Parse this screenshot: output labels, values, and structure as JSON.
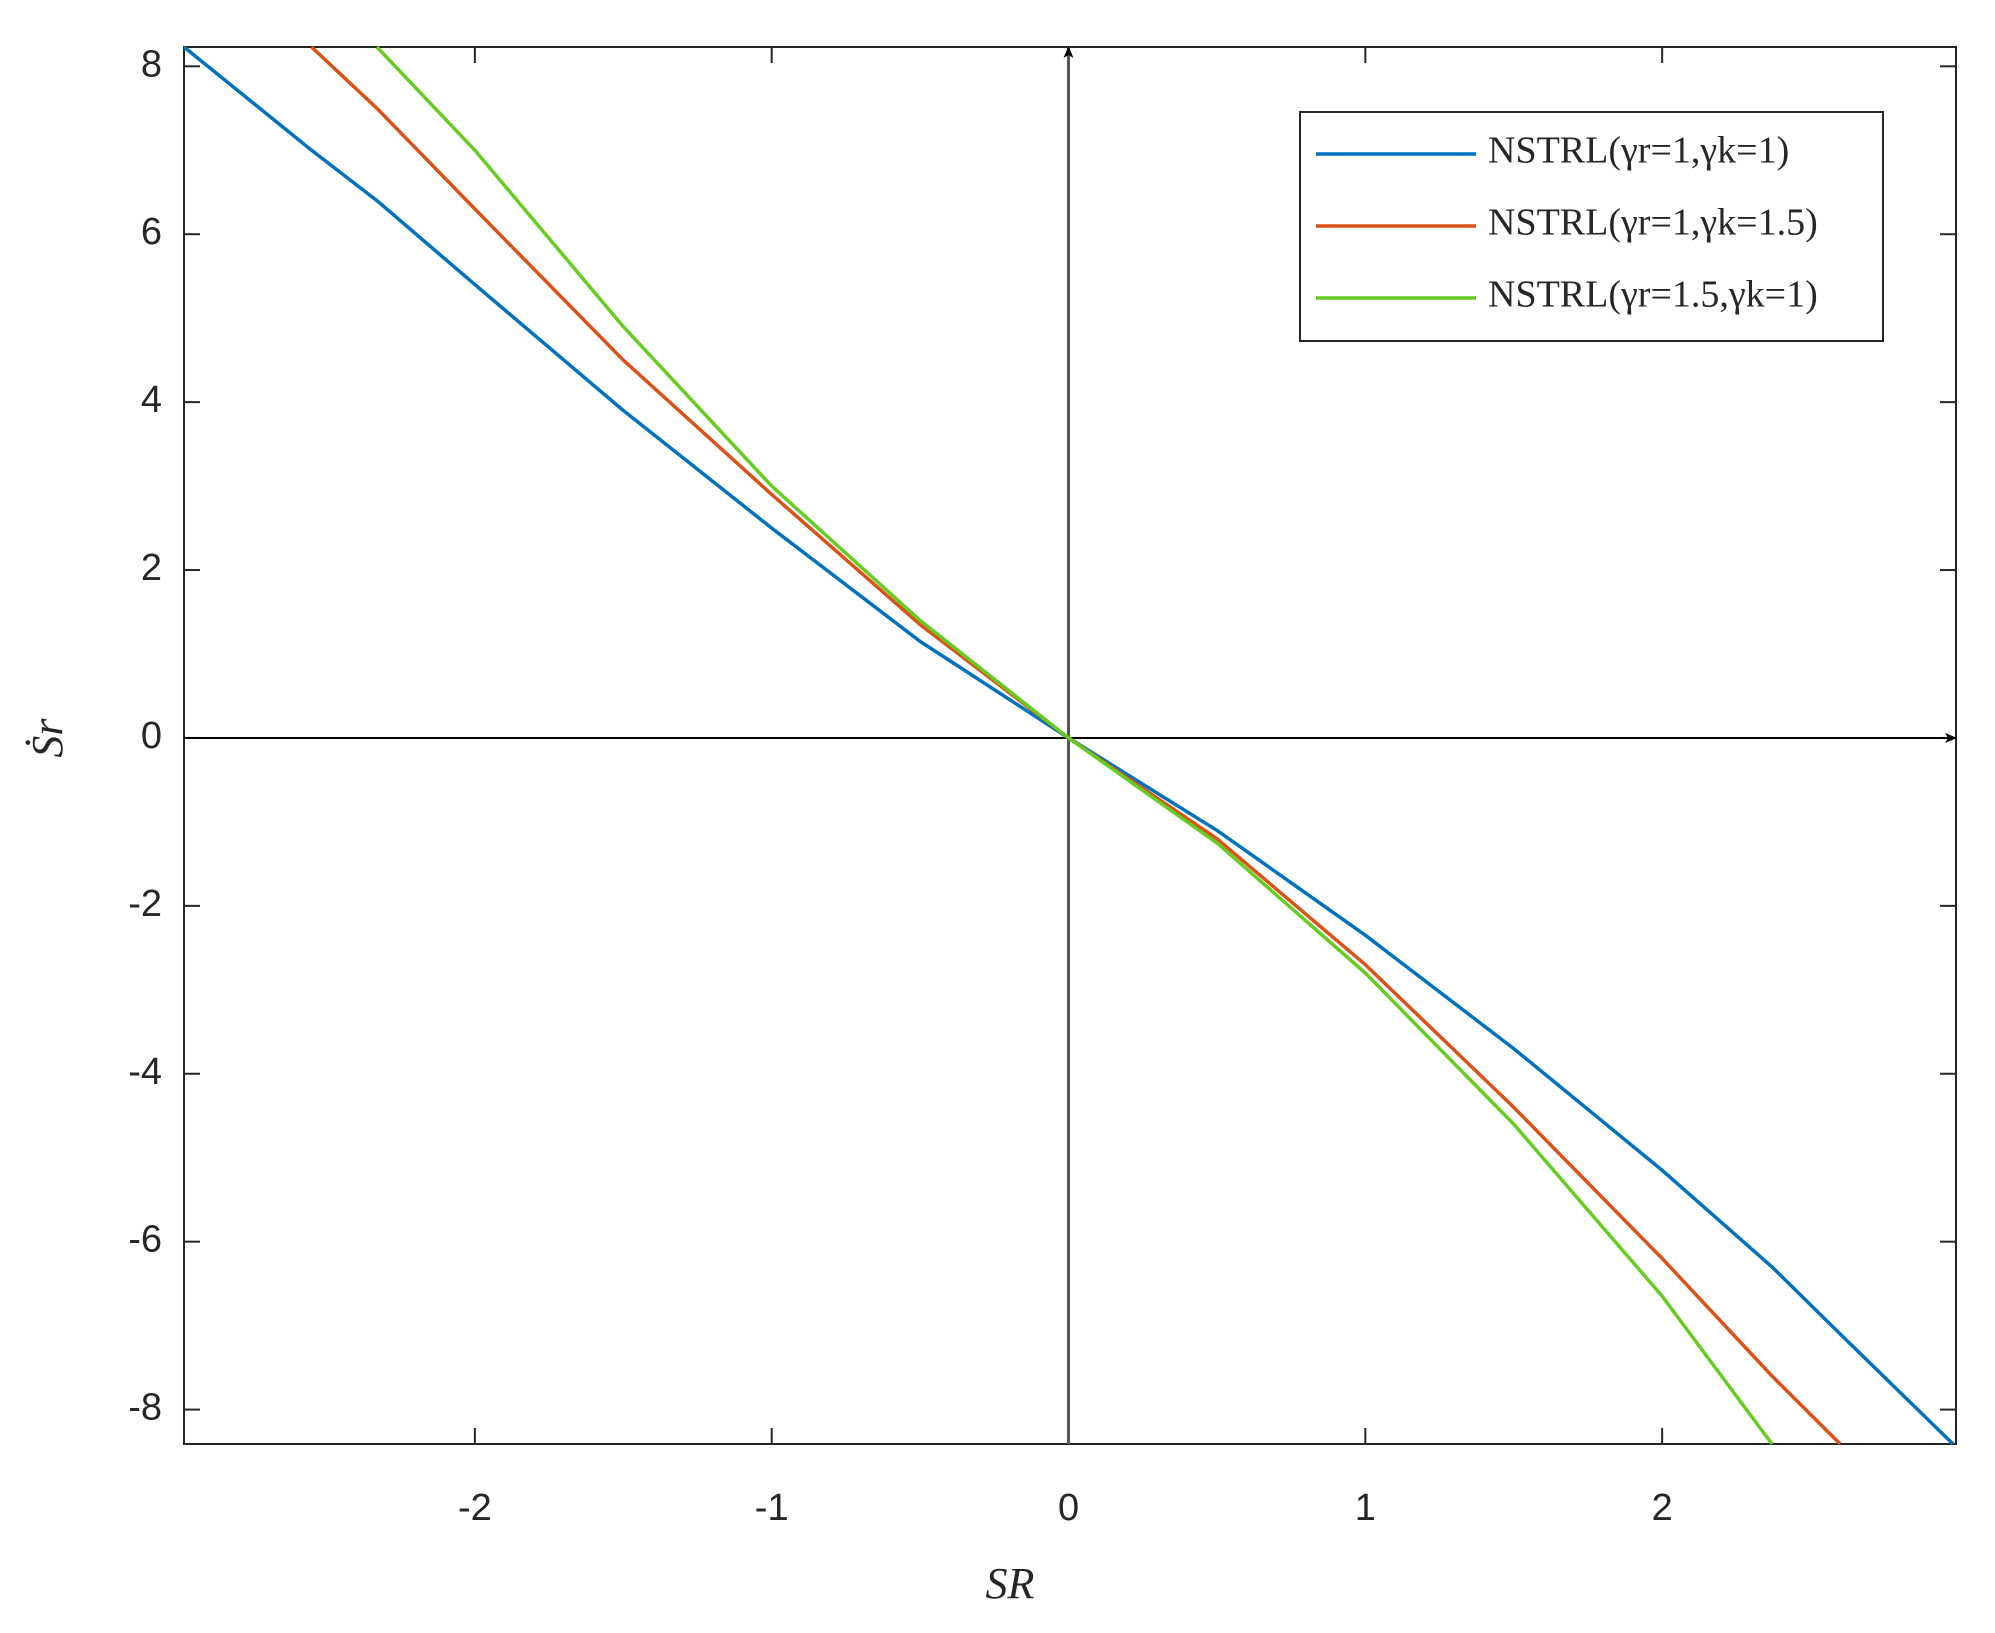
{
  "chart_data": {
    "type": "line",
    "x_label": "SR",
    "y_label": "Ṡr",
    "x": [
      -2.98,
      -2.55,
      -2.33,
      -2,
      -1.5,
      -1,
      -0.5,
      0,
      0.5,
      1,
      1.5,
      2,
      2.37,
      2.6,
      2.98
    ],
    "series": [
      {
        "name": "NSTRL(γr=1,γk=1)",
        "color": "#0072bd",
        "values": [
          8.23,
          7.0,
          6.4,
          5.4,
          3.9,
          2.5,
          1.15,
          0,
          -1.1,
          -2.35,
          -3.7,
          -5.15,
          -6.3,
          -7.1,
          -8.41
        ]
      },
      {
        "name": "NSTRL(γr=1,γk=1.5)",
        "color": "#d95319",
        "values": [
          null,
          8.23,
          7.5,
          6.3,
          4.5,
          2.9,
          1.35,
          0,
          -1.2,
          -2.7,
          -4.4,
          -6.2,
          -7.6,
          -8.41,
          null
        ]
      },
      {
        "name": "NSTRL(γr=1.5,γk=1)",
        "color": "#66cc22",
        "values": [
          null,
          null,
          8.23,
          7.0,
          4.9,
          3.0,
          1.4,
          0,
          -1.25,
          -2.8,
          -4.6,
          -6.65,
          -8.41,
          null,
          null
        ]
      }
    ],
    "xlim": [
      -2.98,
      2.99
    ],
    "ylim": [
      -8.41,
      8.23
    ],
    "xticks": [
      -2,
      -1,
      0,
      1,
      2
    ],
    "yticks": [
      -8,
      -6,
      -4,
      -2,
      0,
      2,
      4,
      6,
      8
    ],
    "legend": "top-right"
  }
}
